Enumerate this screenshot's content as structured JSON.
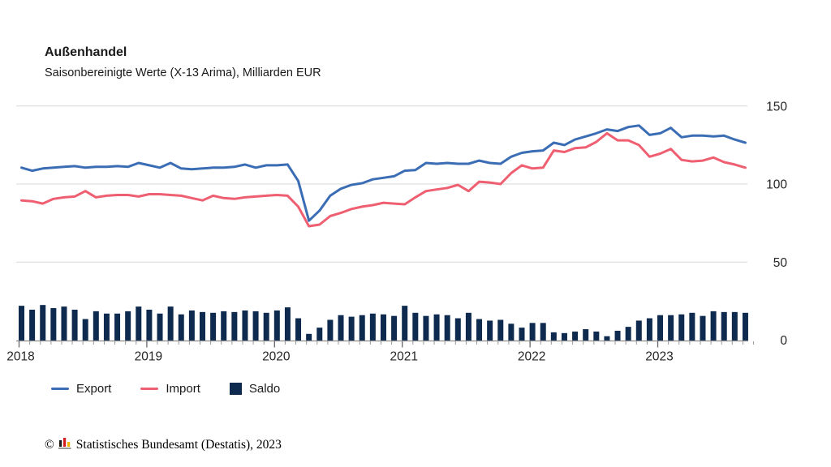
{
  "header": {
    "title": "Außenhandel",
    "subtitle": "Saisonbereinigte Werte (X-13 Arima), Milliarden EUR"
  },
  "legend": {
    "items": [
      {
        "label": "Export",
        "swatch": "line",
        "color": "#3b6db4"
      },
      {
        "label": "Import",
        "swatch": "line",
        "color": "#ef5f72"
      },
      {
        "label": "Saldo",
        "swatch": "square",
        "color": "#0e2b4f"
      }
    ]
  },
  "footer": {
    "copyright": "©",
    "source": "Statistisches Bundesamt (Destatis), 2023"
  },
  "colors": {
    "export": "#3b6db4",
    "import": "#ef5f72",
    "saldo": "#0e2b4f",
    "gridline": "#d9d9d9",
    "axis": "#8c8c8c",
    "tick": "#999999",
    "text": "#262626"
  },
  "chart_data": {
    "type": "line+bar",
    "title": "Außenhandel",
    "subtitle": "Saisonbereinigte Werte (X-13 Arima), Milliarden EUR",
    "ylabel": "Milliarden EUR",
    "y_ticks": [
      0,
      50,
      100,
      150
    ],
    "y_tick_labels": [
      "0",
      "50",
      "100",
      "150"
    ],
    "ylim": [
      0,
      160
    ],
    "grid": "horizontal",
    "legend_position": "bottom",
    "x_tick_labels": [
      "2018",
      "2019",
      "2020",
      "2021",
      "2022",
      "2023"
    ],
    "x": [
      "2018-01",
      "2018-02",
      "2018-03",
      "2018-04",
      "2018-05",
      "2018-06",
      "2018-07",
      "2018-08",
      "2018-09",
      "2018-10",
      "2018-11",
      "2018-12",
      "2019-01",
      "2019-02",
      "2019-03",
      "2019-04",
      "2019-05",
      "2019-06",
      "2019-07",
      "2019-08",
      "2019-09",
      "2019-10",
      "2019-11",
      "2019-12",
      "2020-01",
      "2020-02",
      "2020-03",
      "2020-04",
      "2020-05",
      "2020-06",
      "2020-07",
      "2020-08",
      "2020-09",
      "2020-10",
      "2020-11",
      "2020-12",
      "2021-01",
      "2021-02",
      "2021-03",
      "2021-04",
      "2021-05",
      "2021-06",
      "2021-07",
      "2021-08",
      "2021-09",
      "2021-10",
      "2021-11",
      "2021-12",
      "2022-01",
      "2022-02",
      "2022-03",
      "2022-04",
      "2022-05",
      "2022-06",
      "2022-07",
      "2022-08",
      "2022-09",
      "2022-10",
      "2022-11",
      "2022-12",
      "2023-01",
      "2023-02",
      "2023-03",
      "2023-04",
      "2023-05",
      "2023-06",
      "2023-07",
      "2023-08",
      "2023-09"
    ],
    "series": [
      {
        "name": "Export",
        "type": "line",
        "color": "#3b6db4",
        "values": [
          110.5,
          108.5,
          110,
          110.5,
          111,
          111.5,
          110.5,
          111,
          111,
          111.5,
          111,
          113.5,
          112,
          110.5,
          113.5,
          110,
          109.5,
          110,
          110.5,
          110.5,
          111,
          112.5,
          110.5,
          112,
          112,
          112.5,
          102,
          76.5,
          83,
          92.5,
          97,
          99.5,
          100.5,
          103,
          104,
          105,
          108.5,
          109,
          113.5,
          113,
          113.5,
          113,
          113,
          115,
          113.5,
          113,
          117.5,
          120,
          121,
          121.5,
          126.5,
          125,
          128.5,
          130.5,
          132.5,
          135,
          134,
          136.5,
          137.5,
          131.5,
          132.5,
          136,
          130,
          131,
          131,
          130.5,
          131,
          128.5,
          126.5
        ]
      },
      {
        "name": "Import",
        "type": "line",
        "color": "#ef5f72",
        "values": [
          89.5,
          89,
          87.5,
          90.5,
          91.5,
          92,
          95.5,
          91.5,
          92.5,
          93,
          93,
          92,
          93.5,
          93.5,
          93,
          92.5,
          91,
          89.5,
          92.5,
          91,
          90.5,
          91.5,
          92,
          92.5,
          93,
          92.5,
          85.5,
          73,
          74,
          79.5,
          81.5,
          84,
          85.5,
          86.5,
          88,
          87.5,
          87,
          91.5,
          95.5,
          96.5,
          97.5,
          99.5,
          95.5,
          101.5,
          101,
          100,
          107,
          112,
          110,
          110.5,
          121.5,
          120.5,
          123,
          123.5,
          127,
          132.5,
          128,
          128,
          125,
          117.5,
          119.5,
          122.5,
          115.5,
          114.5,
          115,
          117,
          114,
          112.5,
          110.5
        ]
      },
      {
        "name": "Saldo",
        "type": "bar",
        "color": "#0e2b4f",
        "values": [
          22,
          19.5,
          22.5,
          20.5,
          21.5,
          19.5,
          13.5,
          18.5,
          17,
          17,
          18.5,
          21.5,
          19.5,
          17,
          21.5,
          16.5,
          19,
          18,
          17.5,
          18.5,
          18,
          19,
          18.5,
          17.5,
          19,
          21,
          14,
          4,
          8,
          13,
          16,
          15,
          16,
          17,
          16.5,
          15.5,
          22,
          17.5,
          15.5,
          16.5,
          16,
          14,
          17.5,
          13.5,
          12.5,
          13,
          10.5,
          8,
          11,
          11,
          5,
          4.5,
          5.5,
          7,
          5.5,
          2.5,
          6,
          8.5,
          12.5,
          14,
          16,
          16,
          16.5,
          17.5,
          15.5,
          18.5,
          18,
          18,
          17.5
        ]
      }
    ]
  }
}
